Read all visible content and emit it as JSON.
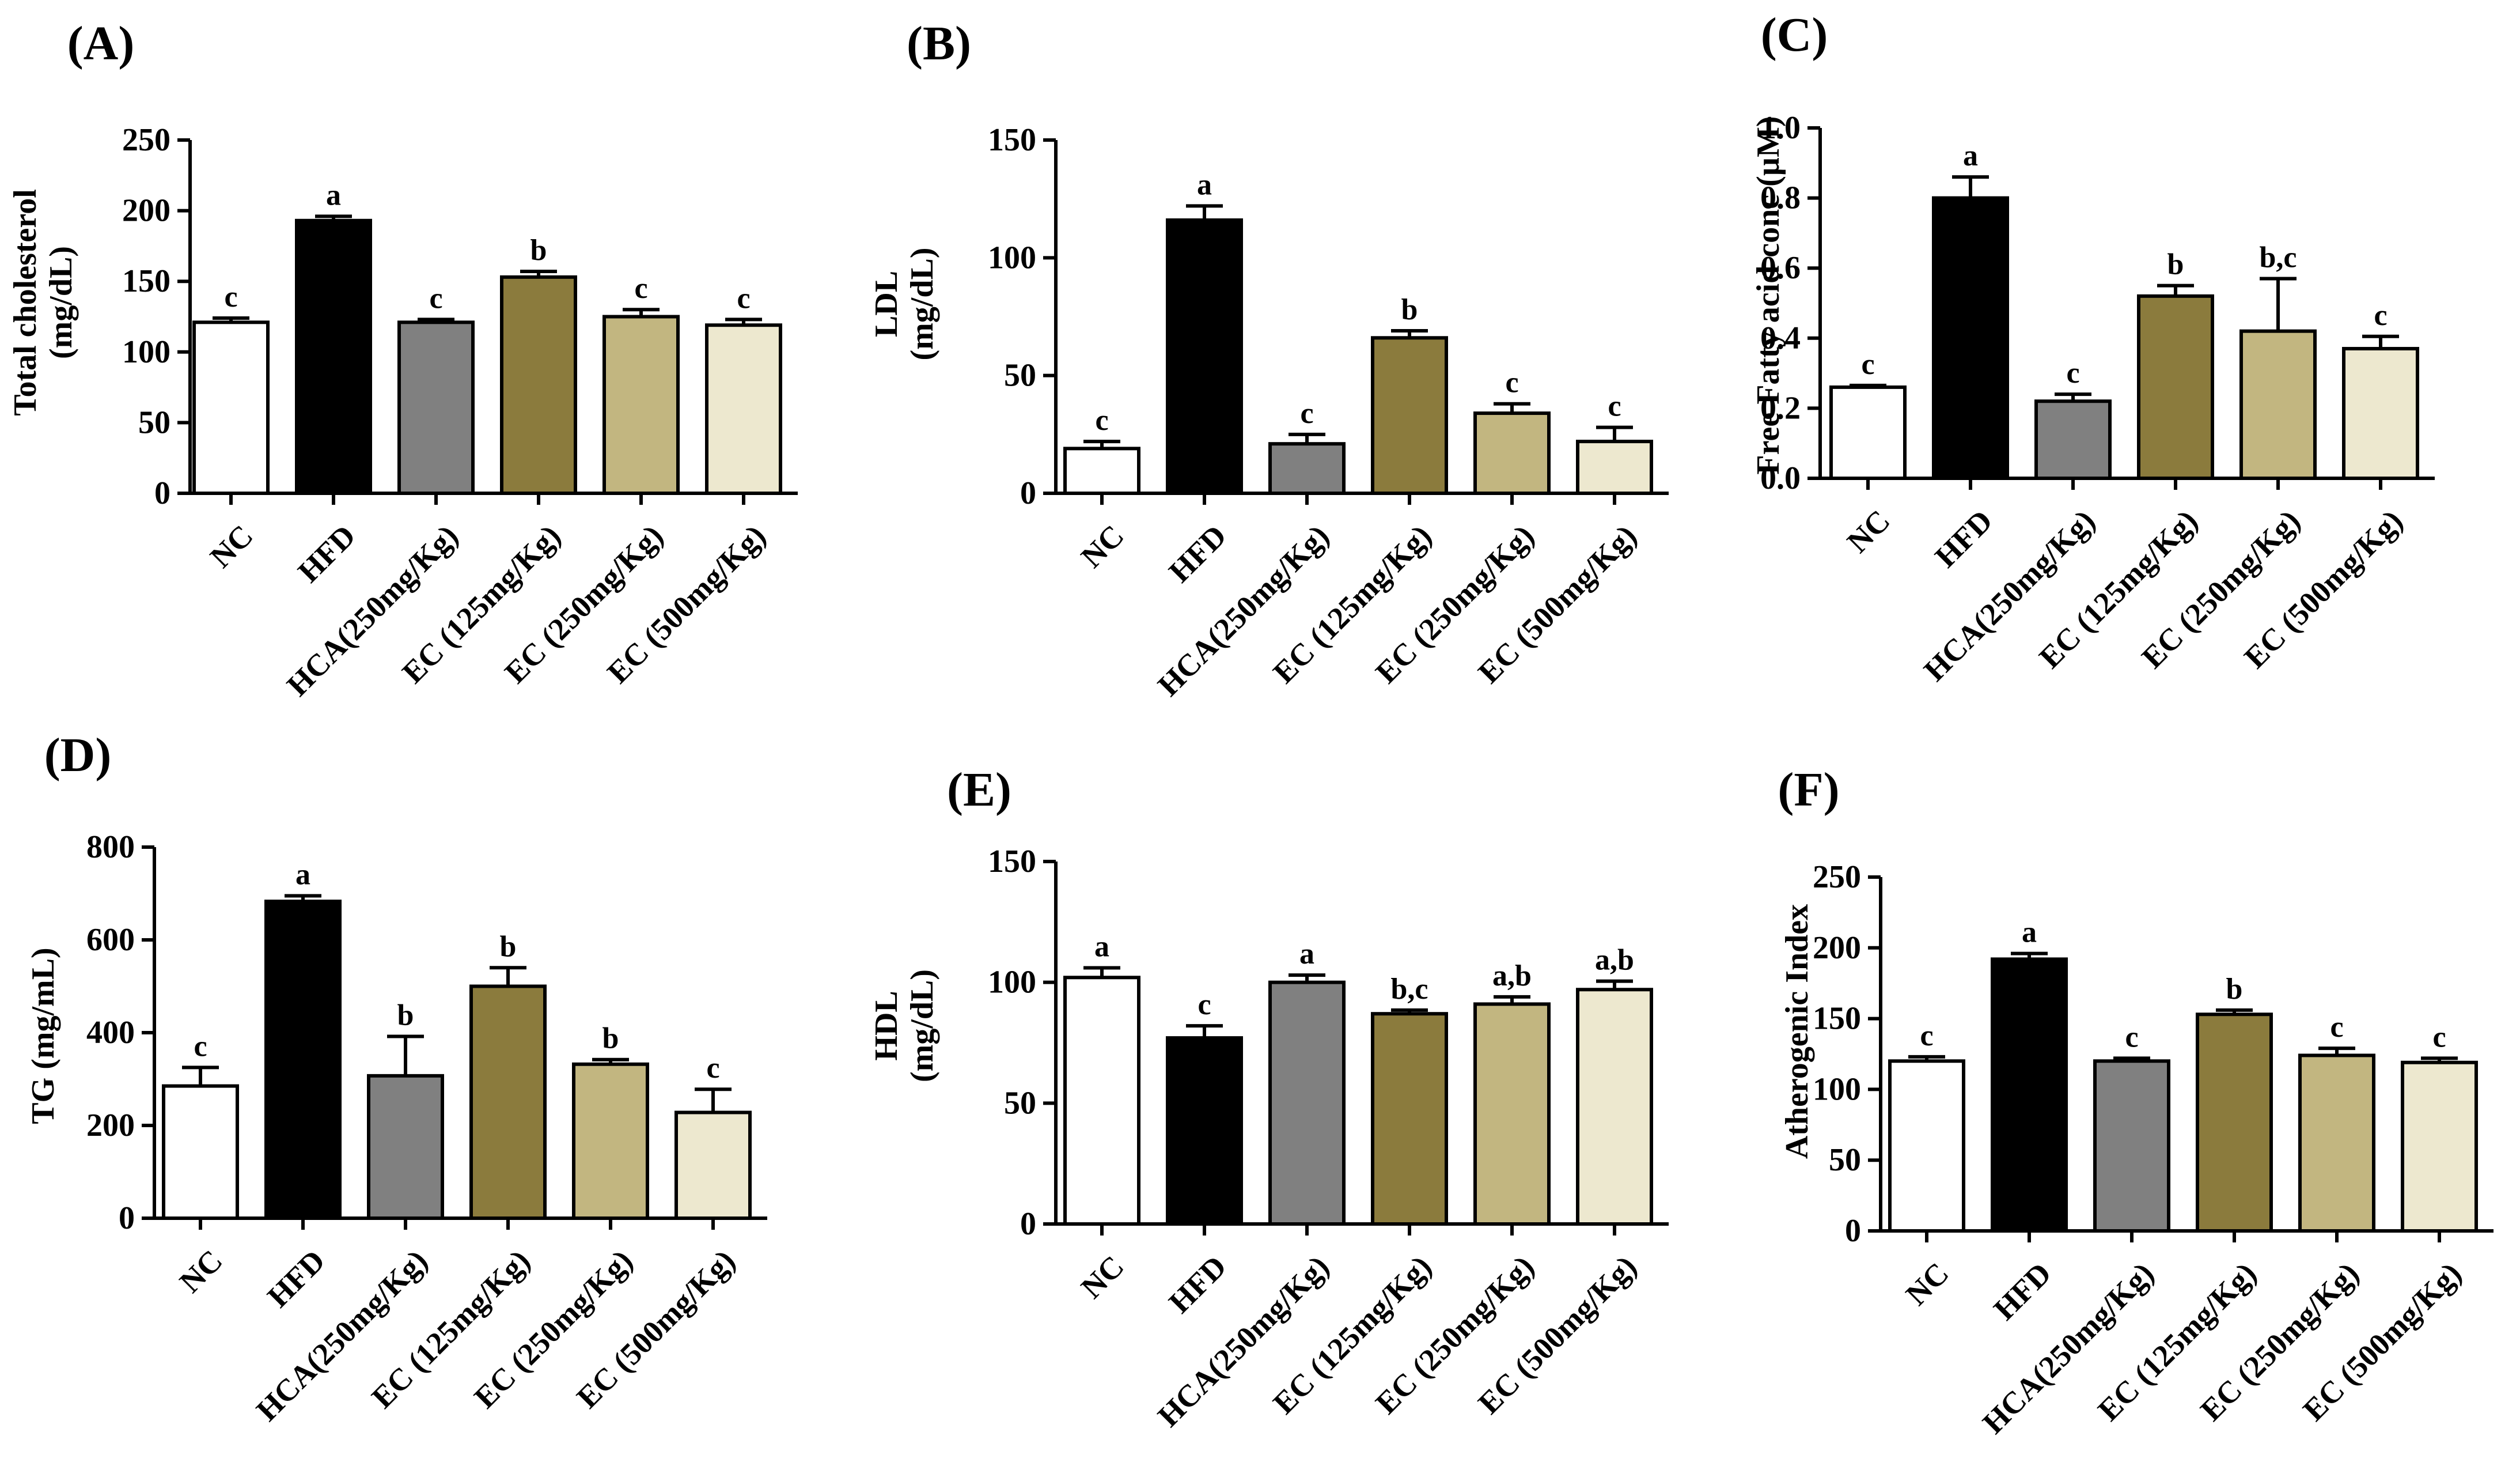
{
  "chart_data": [
    {
      "type": "bar",
      "panel": "(A)",
      "ylabel_lines": [
        "Total cholesterol",
        "(mg/dL)"
      ],
      "categories": [
        "NC",
        "HFD",
        "HCA(250mg/Kg)",
        "EC (125mg/Kg)",
        "EC (250mg/Kg)",
        "EC (500mg/Kg)"
      ],
      "values": [
        121,
        193,
        121,
        153,
        125,
        119
      ],
      "errors": [
        3,
        3,
        2,
        4,
        5,
        4
      ],
      "significance": [
        "c",
        "a",
        "c",
        "b",
        "c",
        "c"
      ],
      "ylim": [
        0,
        250
      ],
      "yticks": [
        "0",
        "50",
        "100",
        "150",
        "200",
        "250"
      ]
    },
    {
      "type": "bar",
      "panel": "(B)",
      "ylabel_lines": [
        "LDL",
        "(mg/dL)"
      ],
      "categories": [
        "NC",
        "HFD",
        "HCA(250mg/Kg)",
        "EC (125mg/Kg)",
        "EC (250mg/Kg)",
        "EC (500mg/Kg)"
      ],
      "values": [
        19,
        116,
        21,
        66,
        34,
        22
      ],
      "errors": [
        3,
        6,
        4,
        3,
        4,
        6
      ],
      "significance": [
        "c",
        "a",
        "c",
        "b",
        "c",
        "c"
      ],
      "ylim": [
        0,
        150
      ],
      "yticks": [
        "0",
        "50",
        "100",
        "150"
      ]
    },
    {
      "type": "bar",
      "panel": "(C)",
      "ylabel_lines": [
        "Free Fatty acid conc (µM)"
      ],
      "categories": [
        "NC",
        "HFD",
        "HCA(250mg/Kg)",
        "EC (125mg/Kg)",
        "EC (250mg/Kg)",
        "EC (500mg/Kg)"
      ],
      "values": [
        0.26,
        0.8,
        0.22,
        0.52,
        0.42,
        0.37
      ],
      "errors": [
        0.005,
        0.06,
        0.02,
        0.03,
        0.15,
        0.035
      ],
      "significance": [
        "c",
        "a",
        "c",
        "b",
        "b,c",
        "c"
      ],
      "ylim": [
        0,
        1.0
      ],
      "yticks": [
        "0.0",
        "0.2",
        "0.4",
        "0.6",
        "0.8",
        "1.0"
      ]
    },
    {
      "type": "bar",
      "panel": "(D)",
      "ylabel_lines": [
        "TG (mg/mL)"
      ],
      "categories": [
        "NC",
        "HFD",
        "HCA(250mg/Kg)",
        "EC (125mg/Kg)",
        "EC (250mg/Kg)",
        "EC (500mg/Kg)"
      ],
      "values": [
        285,
        683,
        307,
        500,
        332,
        228
      ],
      "errors": [
        40,
        12,
        85,
        40,
        10,
        50
      ],
      "significance": [
        "c",
        "a",
        "b",
        "b",
        "b",
        "c"
      ],
      "ylim": [
        0,
        800
      ],
      "yticks": [
        "0",
        "200",
        "400",
        "600",
        "800"
      ]
    },
    {
      "type": "bar",
      "panel": "(E)",
      "ylabel_lines": [
        "HDL",
        "(mg/dL)"
      ],
      "categories": [
        "NC",
        "HFD",
        "HCA(250mg/Kg)",
        "EC (125mg/Kg)",
        "EC (250mg/Kg)",
        "EC (500mg/Kg)"
      ],
      "values": [
        102,
        77,
        100,
        87,
        91,
        97
      ],
      "errors": [
        4,
        5,
        3,
        1.5,
        3,
        3.5
      ],
      "significance": [
        "a",
        "c",
        "a",
        "b,c",
        "a,b",
        "a,b"
      ],
      "ylim": [
        0,
        150
      ],
      "yticks": [
        "0",
        "50",
        "100",
        "150"
      ]
    },
    {
      "type": "bar",
      "panel": "(F)",
      "ylabel_lines": [
        "Atherogenic Index"
      ],
      "categories": [
        "NC",
        "HFD",
        "HCA(250mg/Kg)",
        "EC (125mg/Kg)",
        "EC (250mg/Kg)",
        "EC (500mg/Kg)"
      ],
      "values": [
        120,
        192,
        120,
        153,
        124,
        119
      ],
      "errors": [
        3,
        4,
        2,
        3,
        5,
        3
      ],
      "significance": [
        "c",
        "a",
        "c",
        "b",
        "c",
        "c"
      ],
      "ylim": [
        0,
        250
      ],
      "yticks": [
        "0",
        "50",
        "100",
        "150",
        "200",
        "250"
      ]
    }
  ],
  "colors": {
    "bars": [
      "#ffffff",
      "#000000",
      "#808080",
      "#8b7b3d",
      "#c2b680",
      "#ede8cf"
    ],
    "axis": "#000000"
  }
}
